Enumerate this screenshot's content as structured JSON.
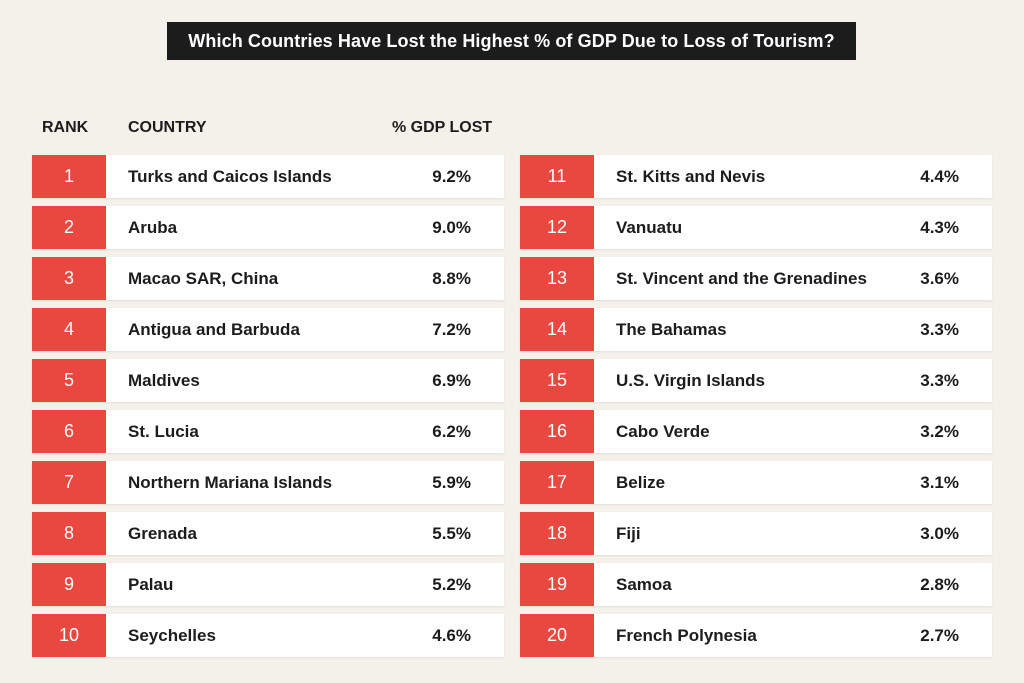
{
  "title": "Which Countries Have Lost the Highest % of GDP Due to Loss of Tourism?",
  "headers": {
    "rank": "RANK",
    "country": "COUNTRY",
    "value": "% GDP LOST"
  },
  "colors": {
    "rank_fill": "#e8483f",
    "title_bg": "#1c1c1c",
    "background": "#f3f1ea"
  },
  "chart_data": {
    "type": "table",
    "title": "Which Countries Have Lost the Highest % of GDP Due to Loss of Tourism?",
    "columns": [
      "RANK",
      "COUNTRY",
      "% GDP LOST"
    ],
    "rows": [
      {
        "rank": "1",
        "country": "Turks and Caicos Islands",
        "value": "9.2%"
      },
      {
        "rank": "2",
        "country": "Aruba",
        "value": "9.0%"
      },
      {
        "rank": "3",
        "country": "Macao SAR, China",
        "value": "8.8%"
      },
      {
        "rank": "4",
        "country": "Antigua and Barbuda",
        "value": "7.2%"
      },
      {
        "rank": "5",
        "country": "Maldives",
        "value": "6.9%"
      },
      {
        "rank": "6",
        "country": "St. Lucia",
        "value": "6.2%"
      },
      {
        "rank": "7",
        "country": "Northern Mariana Islands",
        "value": "5.9%"
      },
      {
        "rank": "8",
        "country": "Grenada",
        "value": "5.5%"
      },
      {
        "rank": "9",
        "country": "Palau",
        "value": "5.2%"
      },
      {
        "rank": "10",
        "country": "Seychelles",
        "value": "4.6%"
      },
      {
        "rank": "11",
        "country": "St. Kitts and Nevis",
        "value": "4.4%"
      },
      {
        "rank": "12",
        "country": "Vanuatu",
        "value": "4.3%"
      },
      {
        "rank": "13",
        "country": "St. Vincent and the Grenadines",
        "value": "3.6%"
      },
      {
        "rank": "14",
        "country": "The Bahamas",
        "value": "3.3%"
      },
      {
        "rank": "15",
        "country": "U.S. Virgin Islands",
        "value": "3.3%"
      },
      {
        "rank": "16",
        "country": "Cabo Verde",
        "value": "3.2%"
      },
      {
        "rank": "17",
        "country": "Belize",
        "value": "3.1%"
      },
      {
        "rank": "18",
        "country": "Fiji",
        "value": "3.0%"
      },
      {
        "rank": "19",
        "country": "Samoa",
        "value": "2.8%"
      },
      {
        "rank": "20",
        "country": "French Polynesia",
        "value": "2.7%"
      }
    ]
  }
}
